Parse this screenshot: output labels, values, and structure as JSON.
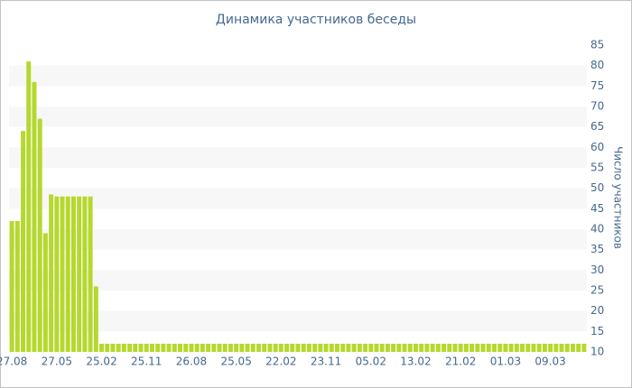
{
  "chart_data": {
    "type": "bar",
    "title": "Динамика участников беседы",
    "y_label": "Число участников",
    "categories": [
      "27.08",
      null,
      null,
      null,
      null,
      null,
      null,
      null,
      "27.05",
      null,
      null,
      null,
      null,
      null,
      null,
      null,
      "25.02",
      null,
      null,
      null,
      null,
      null,
      null,
      null,
      "25.11",
      null,
      null,
      null,
      null,
      null,
      null,
      null,
      "26.08",
      null,
      null,
      null,
      null,
      null,
      null,
      null,
      "25.05",
      null,
      null,
      null,
      null,
      null,
      null,
      null,
      "22.02",
      null,
      null,
      null,
      null,
      null,
      null,
      null,
      "23.11",
      null,
      null,
      null,
      null,
      null,
      null,
      null,
      "05.02",
      null,
      null,
      null,
      null,
      null,
      null,
      null,
      "13.02",
      null,
      null,
      null,
      null,
      null,
      null,
      null,
      "21.02",
      null,
      null,
      null,
      null,
      null,
      null,
      null,
      "01.03",
      null,
      null,
      null,
      null,
      null,
      null,
      null,
      "09.03",
      null,
      null,
      null,
      null,
      null,
      null
    ],
    "values": [
      42,
      42,
      64,
      81,
      76,
      67,
      39,
      48.5,
      48,
      48,
      48,
      48,
      48,
      48,
      48,
      26,
      12,
      12,
      12,
      12,
      12,
      12,
      12,
      12,
      12,
      12,
      12,
      12,
      12,
      12,
      12,
      12,
      12,
      12,
      12,
      12,
      12,
      12,
      12,
      12,
      12,
      12,
      12,
      12,
      12,
      12,
      12,
      12,
      12,
      12,
      12,
      12,
      12,
      12,
      12,
      12,
      12,
      12,
      12,
      12,
      12,
      12,
      12,
      12,
      12,
      12,
      12,
      12,
      12,
      12,
      12,
      12,
      12,
      12,
      12,
      12,
      12,
      12,
      12,
      12,
      12,
      12,
      12,
      12,
      12,
      12,
      12,
      12,
      12,
      12,
      12,
      12,
      12,
      12,
      12,
      12,
      12,
      12,
      12,
      12,
      12,
      12,
      12
    ],
    "color": "#b5d82e",
    "ylim": [
      10,
      85
    ],
    "yticks": [
      10,
      15,
      20,
      25,
      30,
      35,
      40,
      45,
      50,
      55,
      60,
      65,
      70,
      75,
      80,
      85
    ],
    "y_axis_side": "right",
    "grid": "bands"
  }
}
